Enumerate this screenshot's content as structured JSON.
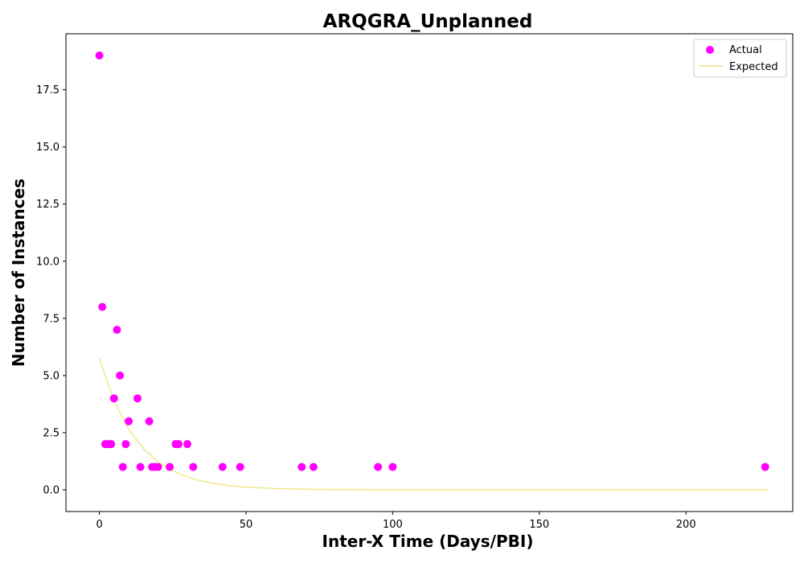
{
  "chart_data": {
    "type": "scatter",
    "title": "ARQGRA_Unplanned",
    "xlabel": "Inter-X Time (Days/PBI)",
    "ylabel": "Number of Instances",
    "xlim": [
      -11.4,
      236.4
    ],
    "ylim": [
      -0.95,
      19.95
    ],
    "x_ticks": [
      0,
      50,
      100,
      150,
      200
    ],
    "x_tick_labels": [
      "0",
      "50",
      "100",
      "150",
      "200"
    ],
    "y_ticks": [
      0,
      2.5,
      5,
      7.5,
      10,
      12.5,
      15,
      17.5
    ],
    "y_tick_labels": [
      "0.0",
      "2.5",
      "5.0",
      "7.5",
      "10.0",
      "12.5",
      "15.0",
      "17.5"
    ],
    "grid": false,
    "legend_position": "top-right",
    "series": [
      {
        "name": "Actual",
        "kind": "scatter",
        "color": "#ff00ff",
        "points": [
          [
            0,
            19
          ],
          [
            1,
            8
          ],
          [
            2,
            2
          ],
          [
            3,
            2
          ],
          [
            4,
            2
          ],
          [
            5,
            4
          ],
          [
            6,
            7
          ],
          [
            7,
            5
          ],
          [
            8,
            1
          ],
          [
            9,
            2
          ],
          [
            10,
            3
          ],
          [
            13,
            4
          ],
          [
            14,
            1
          ],
          [
            17,
            3
          ],
          [
            18,
            1
          ],
          [
            19,
            1
          ],
          [
            20,
            1
          ],
          [
            24,
            1
          ],
          [
            26,
            2
          ],
          [
            27,
            2
          ],
          [
            30,
            2
          ],
          [
            32,
            1
          ],
          [
            42,
            1
          ],
          [
            48,
            1
          ],
          [
            69,
            1
          ],
          [
            73,
            1
          ],
          [
            95,
            1
          ],
          [
            100,
            1
          ],
          [
            227,
            1
          ]
        ]
      },
      {
        "name": "Expected",
        "kind": "line",
        "color": "#f0e68c",
        "points": [
          [
            0,
            5.75
          ],
          [
            5,
            3.9
          ],
          [
            10,
            2.65
          ],
          [
            15,
            1.8
          ],
          [
            20,
            1.22
          ],
          [
            25,
            0.83
          ],
          [
            30,
            0.56
          ],
          [
            35,
            0.38
          ],
          [
            40,
            0.26
          ],
          [
            45,
            0.18
          ],
          [
            50,
            0.12
          ],
          [
            60,
            0.056
          ],
          [
            70,
            0.026
          ],
          [
            80,
            0.012
          ],
          [
            90,
            0.005
          ],
          [
            100,
            0.002
          ],
          [
            120,
            0.0005
          ],
          [
            150,
            0.0
          ],
          [
            200,
            0.0
          ],
          [
            228,
            0.0
          ]
        ]
      }
    ]
  }
}
